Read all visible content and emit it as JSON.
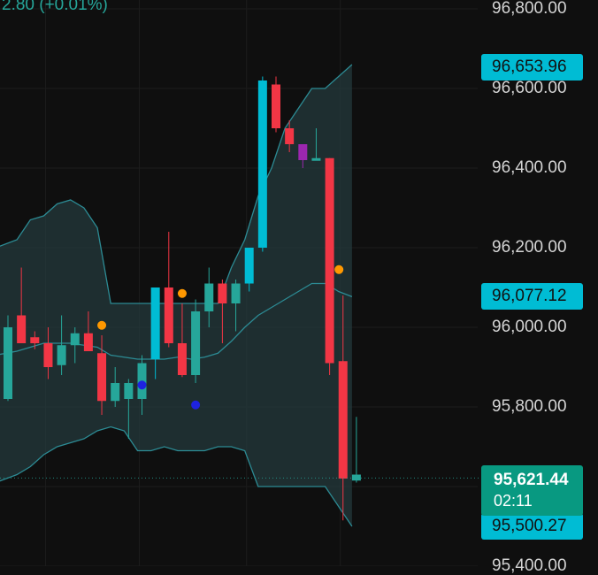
{
  "header": {
    "change_text": "2.80 (+0.01%)"
  },
  "colors": {
    "background": "#0f0f0f",
    "bull": "#26a69a",
    "bear": "#f23645",
    "cyan": "#00bcd4",
    "purple": "#9c27b0",
    "band_line": "#2c8b94",
    "band_fill": "#243a3c",
    "dot_orange": "#ff9800",
    "dot_blue": "#1e22e0",
    "axis_text": "#d4d4d4"
  },
  "chart_data": {
    "type": "candlestick",
    "y_axis": {
      "ticks": [
        "96,800.00",
        "96,600.00",
        "96,400.00",
        "96,200.00",
        "96,000.00",
        "95,800.00",
        "95,400.00"
      ],
      "tick_values": [
        96800,
        96600,
        96400,
        96200,
        96000,
        95800,
        95400
      ]
    },
    "price_tags": [
      {
        "label": "96,653.96",
        "value": 96653.96,
        "color": "cyan"
      },
      {
        "label": "96,077.12",
        "value": 96077.12,
        "color": "cyan"
      },
      {
        "label": "95,500.27",
        "value": 95500.27,
        "color": "cyan"
      }
    ],
    "current_price": {
      "label": "95,621.44",
      "value": 95621.44,
      "timer": "02:11"
    },
    "candles": [
      {
        "open": 96000,
        "high": 96030,
        "low": 95815,
        "close": 95820,
        "color": "bull"
      },
      {
        "open": 96030,
        "high": 96150,
        "low": 95960,
        "close": 95960,
        "color": "bear"
      },
      {
        "open": 95975,
        "high": 95990,
        "low": 95945,
        "close": 95960,
        "color": "bear"
      },
      {
        "open": 95960,
        "high": 96000,
        "low": 95870,
        "close": 95900,
        "color": "bear"
      },
      {
        "open": 95905,
        "high": 96030,
        "low": 95880,
        "close": 95955,
        "color": "bull"
      },
      {
        "open": 95955,
        "high": 96000,
        "low": 95910,
        "close": 95985,
        "color": "bull"
      },
      {
        "open": 95985,
        "high": 96040,
        "low": 95940,
        "close": 95940,
        "color": "bear"
      },
      {
        "open": 95935,
        "high": 95980,
        "low": 95780,
        "close": 95815,
        "color": "bear"
      },
      {
        "open": 95815,
        "high": 95900,
        "low": 95800,
        "close": 95860,
        "color": "bull"
      },
      {
        "open": 95820,
        "high": 95870,
        "low": 95720,
        "close": 95860,
        "color": "bull"
      },
      {
        "open": 95820,
        "high": 95930,
        "low": 95780,
        "close": 95910,
        "color": "bull"
      },
      {
        "open": 95920,
        "high": 96100,
        "low": 95870,
        "close": 96100,
        "color": "cyan"
      },
      {
        "open": 96100,
        "high": 96240,
        "low": 95950,
        "close": 95960,
        "color": "bear"
      },
      {
        "open": 95960,
        "high": 96060,
        "low": 95875,
        "close": 95880,
        "color": "bear"
      },
      {
        "open": 95880,
        "high": 96070,
        "low": 95860,
        "close": 96040,
        "color": "bull"
      },
      {
        "open": 96040,
        "high": 96150,
        "low": 96000,
        "close": 96110,
        "color": "bull"
      },
      {
        "open": 96110,
        "high": 96120,
        "low": 95960,
        "close": 96060,
        "color": "bear"
      },
      {
        "open": 96060,
        "high": 96120,
        "low": 95990,
        "close": 96110,
        "color": "bull"
      },
      {
        "open": 96110,
        "high": 96200,
        "low": 96090,
        "close": 96200,
        "color": "cyan"
      },
      {
        "open": 96200,
        "high": 96630,
        "low": 96190,
        "close": 96620,
        "color": "cyan"
      },
      {
        "open": 96610,
        "high": 96630,
        "low": 96490,
        "close": 96500,
        "color": "bear"
      },
      {
        "open": 96500,
        "high": 96520,
        "low": 96440,
        "close": 96460,
        "color": "bear"
      },
      {
        "open": 96460,
        "high": 96460,
        "low": 96400,
        "close": 96420,
        "color": "purple"
      },
      {
        "open": 96420,
        "high": 96500,
        "low": 96420,
        "close": 96425,
        "color": "bull"
      },
      {
        "open": 96425,
        "high": 96425,
        "low": 95880,
        "close": 95910,
        "color": "bear"
      },
      {
        "open": 95915,
        "high": 96080,
        "low": 95515,
        "close": 95620,
        "color": "bear"
      },
      {
        "open": 95615,
        "high": 95775,
        "low": 95610,
        "close": 95630,
        "color": "bull"
      }
    ],
    "bollinger_bands": {
      "upper": [
        96200,
        96220,
        96270,
        96280,
        96310,
        96320,
        96300,
        96250,
        96060,
        96060,
        96060,
        96060,
        96060,
        96060,
        96060,
        96060,
        96060,
        96150,
        96220,
        96330,
        96400,
        96500,
        96550,
        96600,
        96600,
        96630,
        96660
      ],
      "basis": [
        95930,
        95940,
        95950,
        95960,
        95960,
        95960,
        95955,
        95950,
        95930,
        95925,
        95920,
        95920,
        95920,
        95925,
        95920,
        95925,
        95935,
        95965,
        96000,
        96030,
        96050,
        96070,
        96090,
        96110,
        96110,
        96090,
        96077
      ],
      "lower": [
        95610,
        95630,
        95650,
        95680,
        95700,
        95710,
        95720,
        95740,
        95750,
        95740,
        95690,
        95690,
        95700,
        95690,
        95690,
        95690,
        95700,
        95700,
        95690,
        95600,
        95600,
        95600,
        95600,
        95600,
        95600,
        95550,
        95500
      ]
    },
    "markers": [
      {
        "candle": 7,
        "value": 96005,
        "color": "dot_orange"
      },
      {
        "candle": 13,
        "value": 96085,
        "color": "dot_orange"
      },
      {
        "candle": 10,
        "value": 95855,
        "color": "dot_blue"
      },
      {
        "candle": 14,
        "value": 95805,
        "color": "dot_blue"
      },
      {
        "candle": 24.7,
        "value": 96145,
        "color": "dot_orange"
      }
    ]
  }
}
